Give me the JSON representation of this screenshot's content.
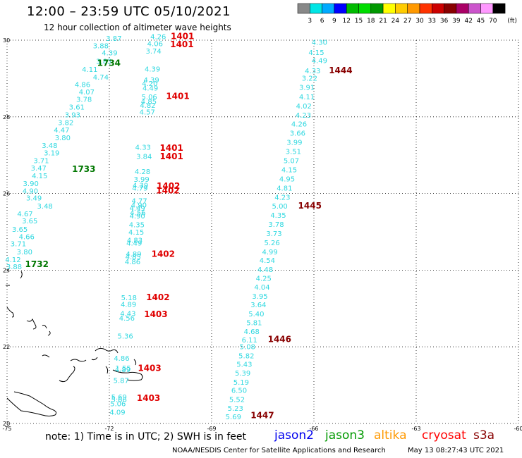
{
  "title": "12:00 – 23:59 UTC 05/10/2021",
  "subtitle": "12 hour collection of altimeter wave heights",
  "color_scale": {
    "unit": "(ft)",
    "ticks": [
      "3",
      "6",
      "9",
      "12",
      "15",
      "18",
      "21",
      "24",
      "27",
      "30",
      "33",
      "36",
      "39",
      "42",
      "45",
      "70"
    ],
    "colors": [
      "#888888",
      "#00e5e5",
      "#00aaff",
      "#0000ff",
      "#00bb00",
      "#00dd00",
      "#009900",
      "#ffff00",
      "#ffcc00",
      "#ff9900",
      "#ff3300",
      "#cc0000",
      "#880000",
      "#aa0066",
      "#cc55cc",
      "#ff99ff",
      "#000000"
    ]
  },
  "axes": {
    "lon_labels": [
      "-75",
      "-72",
      "-69",
      "-66",
      "-63",
      "-60"
    ],
    "lat_labels": [
      "30",
      "28",
      "26",
      "24",
      "22",
      "20"
    ]
  },
  "swh_color": "#2fd8e0",
  "time_colors": {
    "red": "#e00000",
    "darkred": "#880000",
    "green": "#007700"
  },
  "tracks": [
    {
      "id": "track-a",
      "time_labels": [
        [
          "1734",
          "green",
          0.186,
          0.144
        ],
        [
          "1733",
          "green",
          0.138,
          0.375
        ],
        [
          "1732",
          "green",
          0.048,
          0.583
        ]
      ],
      "swh": [
        [
          "3.87",
          0.203,
          0.089
        ],
        [
          "3.88",
          0.178,
          0.105
        ],
        [
          "4.39",
          0.195,
          0.121
        ],
        [
          "3.83",
          0.184,
          0.139
        ],
        [
          "4.11",
          0.157,
          0.157
        ],
        [
          "4.74",
          0.178,
          0.174
        ],
        [
          "4.86",
          0.143,
          0.19
        ],
        [
          "4.07",
          0.151,
          0.206
        ],
        [
          "3.78",
          0.146,
          0.222
        ],
        [
          "3.61",
          0.132,
          0.239
        ],
        [
          "3.93",
          0.124,
          0.256
        ],
        [
          "3.82",
          0.111,
          0.273
        ],
        [
          "4.47",
          0.103,
          0.289
        ],
        [
          "3.80",
          0.105,
          0.306
        ],
        [
          "3.48",
          0.08,
          0.323
        ],
        [
          "3.19",
          0.084,
          0.339
        ],
        [
          "3.71",
          0.064,
          0.356
        ],
        [
          "3.47",
          0.059,
          0.372
        ],
        [
          "4.15",
          0.061,
          0.389
        ],
        [
          "3.90",
          0.044,
          0.406
        ],
        [
          "4.90",
          0.043,
          0.422
        ],
        [
          "3.49",
          0.05,
          0.438
        ],
        [
          "3.48",
          0.071,
          0.455
        ],
        [
          "4.67",
          0.033,
          0.472
        ],
        [
          "3.65",
          0.042,
          0.488
        ],
        [
          "3.65",
          0.023,
          0.506
        ],
        [
          "4.66",
          0.036,
          0.522
        ],
        [
          "3.71",
          0.02,
          0.538
        ],
        [
          "3.80",
          0.032,
          0.555
        ],
        [
          "4.12",
          0.01,
          0.572
        ],
        [
          "3.88",
          0.012,
          0.588
        ]
      ]
    },
    {
      "id": "track-b",
      "time_labels": [
        [
          "1401",
          "red",
          0.327,
          0.085
        ],
        [
          "1401",
          "red",
          0.326,
          0.103
        ],
        [
          "1401",
          "red",
          0.318,
          0.216
        ],
        [
          "1401",
          "red",
          0.306,
          0.329
        ],
        [
          "1401",
          "red",
          0.306,
          0.348
        ],
        [
          "1402",
          "red",
          0.3,
          0.412
        ],
        [
          "1402",
          "red",
          0.299,
          0.422
        ],
        [
          "1402",
          "red",
          0.29,
          0.561
        ],
        [
          "1402",
          "red",
          0.28,
          0.655
        ],
        [
          "1403",
          "red",
          0.276,
          0.692
        ],
        [
          "1403",
          "red",
          0.264,
          0.81
        ],
        [
          "1403",
          "red",
          0.262,
          0.875
        ]
      ],
      "swh": [
        [
          "4.26",
          0.288,
          0.085
        ],
        [
          "4.06",
          0.282,
          0.101
        ],
        [
          "3.74",
          0.279,
          0.117
        ],
        [
          "4.39",
          0.277,
          0.156
        ],
        [
          "4.39",
          0.275,
          0.18
        ],
        [
          "4.20",
          0.272,
          0.188
        ],
        [
          "4.49",
          0.273,
          0.198
        ],
        [
          "5.06",
          0.271,
          0.217
        ],
        [
          "4.85",
          0.27,
          0.227
        ],
        [
          "4.82",
          0.268,
          0.235
        ],
        [
          "4.57",
          0.267,
          0.25
        ],
        [
          "4.33",
          0.259,
          0.327
        ],
        [
          "3.84",
          0.261,
          0.347
        ],
        [
          "4.28",
          0.258,
          0.38
        ],
        [
          "3.99",
          0.256,
          0.397
        ],
        [
          "4.39",
          0.254,
          0.41
        ],
        [
          "4.79",
          0.253,
          0.416
        ],
        [
          "4.77",
          0.252,
          0.444
        ],
        [
          "4.90",
          0.251,
          0.453
        ],
        [
          "4.49",
          0.248,
          0.46
        ],
        [
          "4.56",
          0.249,
          0.47
        ],
        [
          "4.90",
          0.248,
          0.477
        ],
        [
          "4.35",
          0.247,
          0.496
        ],
        [
          "4.15",
          0.246,
          0.512
        ],
        [
          "4.83",
          0.243,
          0.53
        ],
        [
          "4.49",
          0.242,
          0.536
        ],
        [
          "4.89",
          0.241,
          0.56
        ],
        [
          "4.85",
          0.24,
          0.566
        ],
        [
          "4.86",
          0.239,
          0.577
        ],
        [
          "5.18",
          0.232,
          0.655
        ],
        [
          "4.89",
          0.231,
          0.67
        ],
        [
          "4.43",
          0.23,
          0.69
        ],
        [
          "4.56",
          0.228,
          0.7
        ],
        [
          "5.36",
          0.225,
          0.739
        ],
        [
          "4.86",
          0.218,
          0.788
        ],
        [
          "1.55",
          0.221,
          0.809
        ],
        [
          "4.89",
          0.22,
          0.812
        ],
        [
          "5.87",
          0.217,
          0.836
        ],
        [
          "5.69",
          0.213,
          0.872
        ],
        [
          "5.66",
          0.213,
          0.878
        ],
        [
          "5.06",
          0.211,
          0.887
        ],
        [
          "4.09",
          0.21,
          0.905
        ]
      ]
    },
    {
      "id": "track-c",
      "time_labels": [
        [
          "1444",
          "darkred",
          0.63,
          0.16
        ],
        [
          "1445",
          "darkred",
          0.571,
          0.455
        ],
        [
          "1446",
          "darkred",
          0.513,
          0.747
        ],
        [
          "1447",
          "darkred",
          0.48,
          0.913
        ]
      ],
      "swh": [
        [
          "4.30",
          0.597,
          0.098
        ],
        [
          "4.15",
          0.591,
          0.12
        ],
        [
          "4.49",
          0.597,
          0.138
        ],
        [
          "4.33",
          0.584,
          0.16
        ],
        [
          "3.22",
          0.578,
          0.176
        ],
        [
          "3.91",
          0.573,
          0.196
        ],
        [
          "4.11",
          0.573,
          0.217
        ],
        [
          "4.02",
          0.567,
          0.237
        ],
        [
          "4.23",
          0.566,
          0.257
        ],
        [
          "4.26",
          0.558,
          0.276
        ],
        [
          "3.66",
          0.555,
          0.296
        ],
        [
          "3.99",
          0.549,
          0.316
        ],
        [
          "3.51",
          0.547,
          0.336
        ],
        [
          "5.07",
          0.543,
          0.356
        ],
        [
          "4.15",
          0.539,
          0.376
        ],
        [
          "4.95",
          0.535,
          0.396
        ],
        [
          "4.81",
          0.53,
          0.416
        ],
        [
          "4.23",
          0.526,
          0.436
        ],
        [
          "5.00",
          0.521,
          0.455
        ],
        [
          "4.35",
          0.518,
          0.475
        ],
        [
          "3.78",
          0.514,
          0.495
        ],
        [
          "3.73",
          0.51,
          0.515
        ],
        [
          "5.26",
          0.506,
          0.535
        ],
        [
          "4.99",
          0.502,
          0.555
        ],
        [
          "4.54",
          0.497,
          0.574
        ],
        [
          "4.48",
          0.493,
          0.594
        ],
        [
          "4.25",
          0.49,
          0.613
        ],
        [
          "4.04",
          0.487,
          0.632
        ],
        [
          "3.95",
          0.483,
          0.652
        ],
        [
          "3.64",
          0.48,
          0.671
        ],
        [
          "5.40",
          0.476,
          0.691
        ],
        [
          "5.81",
          0.472,
          0.71
        ],
        [
          "4.68",
          0.467,
          0.729
        ],
        [
          "6.11",
          0.463,
          0.748
        ],
        [
          "5.08",
          0.459,
          0.762
        ],
        [
          "5.82",
          0.457,
          0.782
        ],
        [
          "5.43",
          0.453,
          0.801
        ],
        [
          "5.39",
          0.45,
          0.82
        ],
        [
          "5.19",
          0.447,
          0.84
        ],
        [
          "6.50",
          0.443,
          0.858
        ],
        [
          "5.52",
          0.439,
          0.878
        ],
        [
          "5.23",
          0.436,
          0.897
        ],
        [
          "5.69",
          0.432,
          0.915
        ]
      ]
    }
  ],
  "note": "note:  1) Time is in UTC;  2) SWH is in feet",
  "satellites": [
    {
      "name": "jason2",
      "color": "#0000ee"
    },
    {
      "name": "jason3",
      "color": "#009900"
    },
    {
      "name": "altika",
      "color": "#ff9900"
    },
    {
      "name": "cryosat",
      "color": "#ff0000"
    },
    {
      "name": "s3a",
      "color": "#880000"
    }
  ],
  "credit": "NOAA/NESDIS Center for Satellite Applications and Research",
  "timestamp": "May 13 08:27:43 UTC 2021"
}
